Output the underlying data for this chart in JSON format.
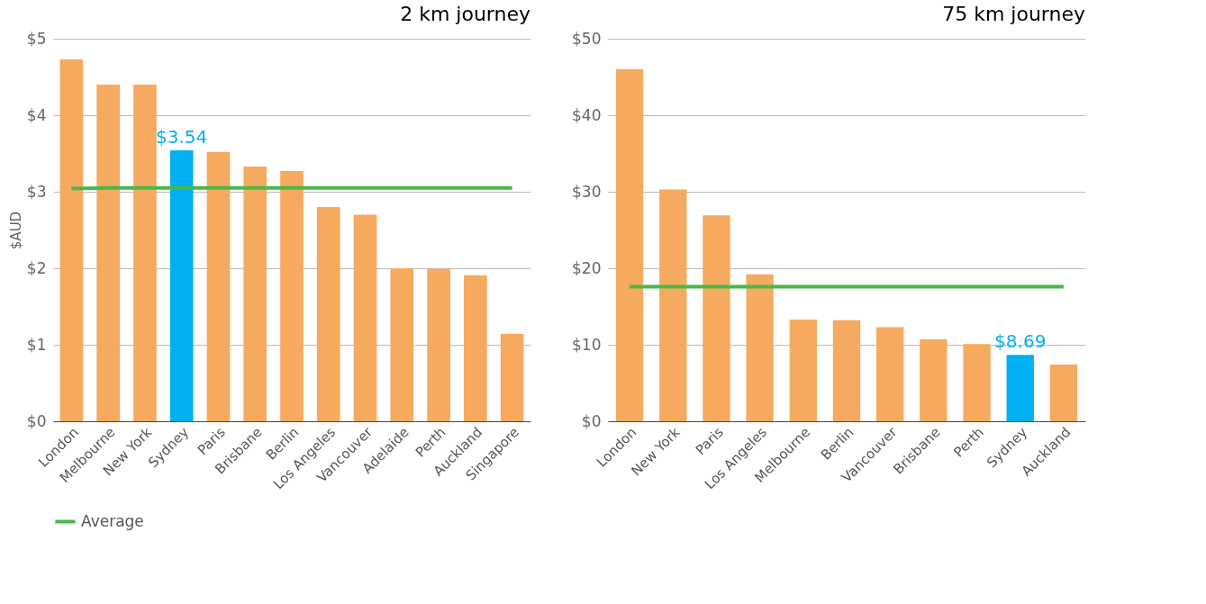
{
  "chart_data": [
    {
      "type": "bar",
      "title": "2 km journey",
      "ylabel": "$AUD",
      "categories": [
        "London",
        "Melbourne",
        "New York",
        "Sydney",
        "Paris",
        "Brisbane",
        "Berlin",
        "Los Angeles",
        "Vancouver",
        "Adelaide",
        "Perth",
        "Auckland",
        "Singapore"
      ],
      "series": [
        {
          "colors": [
            "#f5aa5f",
            "#f5aa5f",
            "#f5aa5f",
            "#00b0f0",
            "#f5aa5f",
            "#f5aa5f",
            "#f5aa5f",
            "#f5aa5f",
            "#f5aa5f",
            "#f5aa5f",
            "#f5aa5f",
            "#f5aa5f",
            "#f5aa5f"
          ],
          "values": [
            4.73,
            4.4,
            4.4,
            3.54,
            3.52,
            3.33,
            3.27,
            2.8,
            2.7,
            2.0,
            1.99,
            1.91,
            1.14
          ],
          "value_labels": [
            null,
            null,
            null,
            "$3.54",
            null,
            null,
            null,
            null,
            null,
            null,
            null,
            null,
            null
          ]
        },
        {
          "type": "line",
          "name": "Average",
          "color": "#4ab848",
          "values": [
            3.04,
            3.05,
            3.05,
            3.05,
            3.05,
            3.05,
            3.05,
            3.05,
            3.05,
            3.05,
            3.05,
            3.05,
            3.05
          ]
        }
      ],
      "ylim": [
        0,
        5
      ],
      "yticks": [
        {
          "value": 0,
          "label": "$0"
        },
        {
          "value": 1,
          "label": "$1"
        },
        {
          "value": 2,
          "label": "$2"
        },
        {
          "value": 3,
          "label": "$3"
        },
        {
          "value": 4,
          "label": "$4"
        },
        {
          "value": 5,
          "label": "$5"
        }
      ],
      "grid": "y",
      "legend": "bottom"
    },
    {
      "type": "bar",
      "title": "75 km journey",
      "categories": [
        "London",
        "New York",
        "Paris",
        "Los Angeles",
        "Melbourne",
        "Berlin",
        "Vancouver",
        "Brisbane",
        "Perth",
        "Sydney",
        "Auckland"
      ],
      "series": [
        {
          "colors": [
            "#f5aa5f",
            "#f5aa5f",
            "#f5aa5f",
            "#f5aa5f",
            "#f5aa5f",
            "#f5aa5f",
            "#f5aa5f",
            "#f5aa5f",
            "#f5aa5f",
            "#00b0f0",
            "#f5aa5f"
          ],
          "values": [
            46.0,
            30.3,
            26.9,
            19.2,
            13.3,
            13.2,
            12.3,
            10.7,
            10.1,
            8.69,
            7.4
          ],
          "value_labels": [
            null,
            null,
            null,
            null,
            null,
            null,
            null,
            null,
            null,
            "$8.69",
            null
          ]
        },
        {
          "type": "line",
          "color": "#4ab848",
          "values": [
            17.6,
            17.6,
            17.6,
            17.6,
            17.6,
            17.6,
            17.6,
            17.6,
            17.6,
            17.6,
            17.6
          ]
        }
      ],
      "ylim": [
        0,
        50
      ],
      "yticks": [
        {
          "value": 0,
          "label": "$0"
        },
        {
          "value": 10,
          "label": "$10"
        },
        {
          "value": 20,
          "label": "$20"
        },
        {
          "value": 30,
          "label": "$30"
        },
        {
          "value": 40,
          "label": "$40"
        },
        {
          "value": 50,
          "label": "$50"
        }
      ],
      "grid": "y"
    }
  ]
}
